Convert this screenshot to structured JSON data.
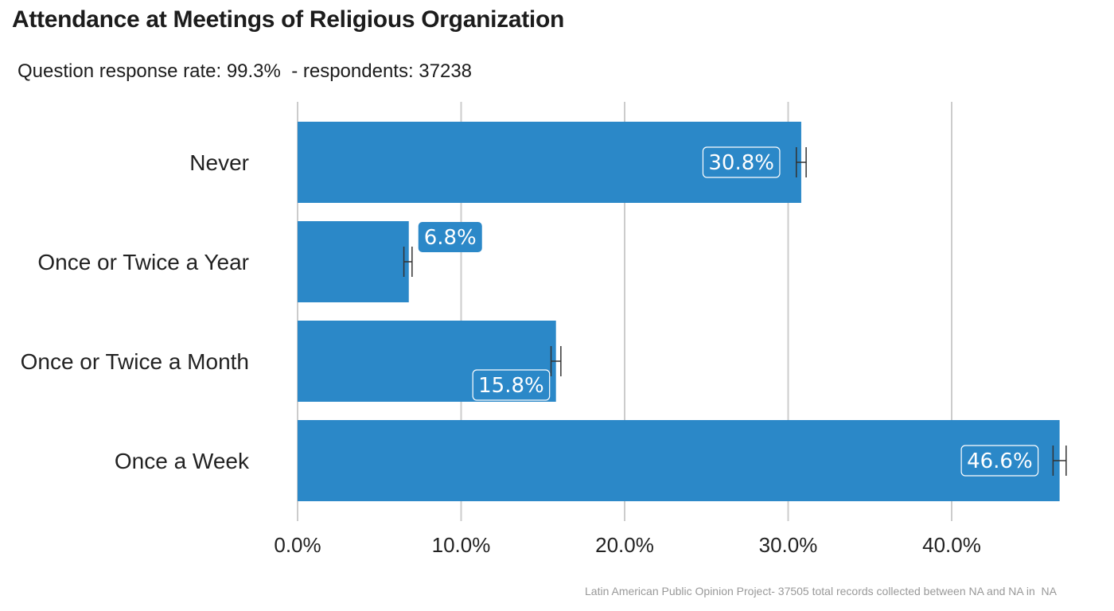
{
  "chart_data": {
    "type": "bar",
    "orientation": "horizontal",
    "title": "Attendance at Meetings of Religious Organization",
    "subtitle": "Question response rate: 99.3%  - respondents: 37238",
    "caption": "Latin American Public Opinion Project- 37505 total records collected between NA and NA in  NA",
    "categories": [
      "Never",
      "Once or Twice a Year",
      "Once or Twice a Month",
      "Once a Week"
    ],
    "values": [
      30.8,
      6.8,
      15.8,
      46.6
    ],
    "value_labels": [
      "30.8%",
      "6.8%",
      "15.8%",
      "46.6%"
    ],
    "error_bars": [
      [
        30.5,
        31.1
      ],
      [
        6.5,
        7.0
      ],
      [
        15.5,
        16.1
      ],
      [
        46.2,
        47.0
      ]
    ],
    "xlim": [
      0,
      47
    ],
    "x_ticks": [
      0,
      10,
      20,
      30,
      40
    ],
    "x_tick_labels": [
      "0.0%",
      "10.0%",
      "20.0%",
      "30.0%",
      "40.0%"
    ],
    "grid": true,
    "bar_color": "#2b88c8"
  }
}
